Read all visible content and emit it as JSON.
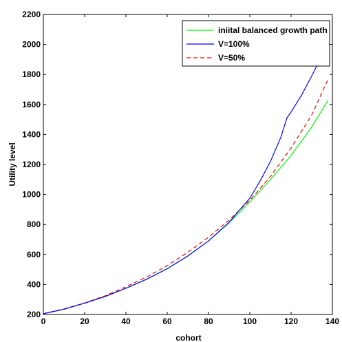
{
  "chart_data": {
    "type": "line",
    "xlabel": "cohort",
    "ylabel": "Utility level",
    "xlim": [
      0,
      140
    ],
    "ylim": [
      200,
      2200
    ],
    "xticks": [
      0,
      20,
      40,
      60,
      80,
      100,
      120,
      140
    ],
    "yticks": [
      200,
      400,
      600,
      800,
      1000,
      1200,
      1400,
      1600,
      1800,
      2000,
      2200
    ],
    "grid": false,
    "legend_position": "top-right",
    "series": [
      {
        "name": "iniital balanced growth path",
        "color": "#00ff00",
        "dash": "solid",
        "x": [
          0,
          10,
          20,
          30,
          40,
          50,
          60,
          70,
          80,
          90,
          100,
          110,
          120,
          130,
          138
        ],
        "y": [
          205,
          235,
          275,
          320,
          375,
          435,
          505,
          590,
          690,
          810,
          950,
          1100,
          1260,
          1450,
          1630
        ]
      },
      {
        "name": "V=100%",
        "color": "#0000ff",
        "dash": "solid",
        "x": [
          0,
          10,
          20,
          30,
          40,
          50,
          60,
          70,
          80,
          90,
          100,
          105,
          110,
          115,
          118,
          120,
          125,
          130,
          134
        ],
        "y": [
          205,
          235,
          275,
          320,
          375,
          435,
          505,
          590,
          690,
          815,
          975,
          1090,
          1220,
          1380,
          1510,
          1550,
          1660,
          1790,
          1900
        ]
      },
      {
        "name": "V=50%",
        "color": "#ff0000",
        "dash": "dashed",
        "x": [
          0,
          10,
          20,
          30,
          40,
          50,
          60,
          70,
          80,
          90,
          100,
          110,
          120,
          130,
          138
        ],
        "y": [
          205,
          237,
          277,
          325,
          385,
          450,
          525,
          615,
          715,
          830,
          960,
          1120,
          1310,
          1530,
          1770
        ]
      }
    ]
  }
}
